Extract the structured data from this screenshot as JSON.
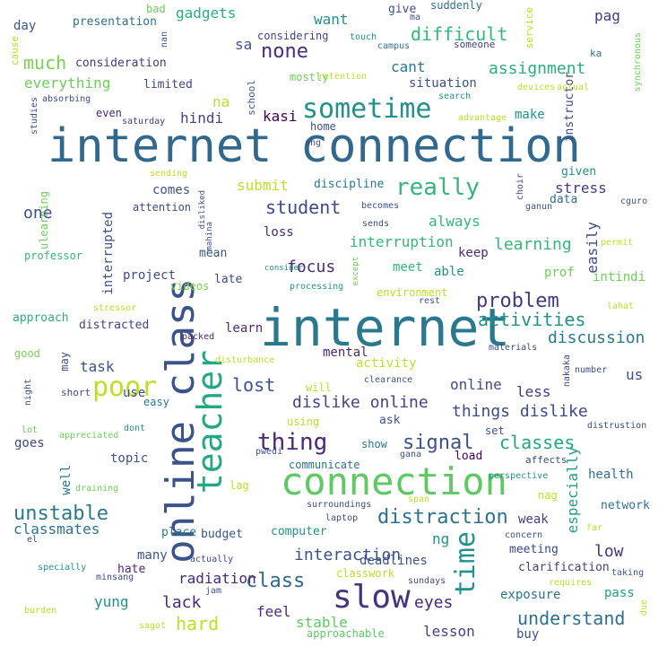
{
  "words": [
    {
      "text": "internet connection",
      "color": "#31688e"
    },
    {
      "text": "internet",
      "color": "#2a788e"
    },
    {
      "text": "connection",
      "color": "#5ec962"
    },
    {
      "text": "online class",
      "color": "#3b528b"
    },
    {
      "text": "teacher",
      "color": "#22a884"
    },
    {
      "text": "slow",
      "color": "#46327e"
    },
    {
      "text": "sometime",
      "color": "#21918c"
    },
    {
      "text": "poor",
      "color": "#bddf26"
    },
    {
      "text": "time",
      "color": "#21918c"
    },
    {
      "text": "really",
      "color": "#35b779"
    },
    {
      "text": "thing",
      "color": "#482878"
    },
    {
      "text": "problem",
      "color": "#443983"
    },
    {
      "text": "distraction",
      "color": "#2c728e"
    },
    {
      "text": "activities",
      "color": "#21918c"
    },
    {
      "text": "classes",
      "color": "#22a884"
    },
    {
      "text": "unstable",
      "color": "#2a788e"
    },
    {
      "text": "signal",
      "color": "#3b528b"
    },
    {
      "text": "none",
      "color": "#472d7b"
    },
    {
      "text": "student",
      "color": "#3e4a89"
    },
    {
      "text": "hard",
      "color": "#bddf26"
    },
    {
      "text": "lost",
      "color": "#3b528b"
    },
    {
      "text": "class",
      "color": "#31688e"
    },
    {
      "text": "understand",
      "color": "#2c728e"
    },
    {
      "text": "difficult",
      "color": "#35b779"
    },
    {
      "text": "much",
      "color": "#7ad151"
    },
    {
      "text": "assignment",
      "color": "#29af7f"
    },
    {
      "text": "dislike online",
      "color": "#414487"
    },
    {
      "text": "things dislike",
      "color": "#3e4a89"
    },
    {
      "text": "interaction",
      "color": "#3b528b"
    },
    {
      "text": "lack",
      "color": "#482878"
    },
    {
      "text": "eyes",
      "color": "#482878"
    },
    {
      "text": "focus",
      "color": "#472d7b"
    },
    {
      "text": "discussion",
      "color": "#2a788e"
    },
    {
      "text": "learning",
      "color": "#35b779"
    },
    {
      "text": "interruption",
      "color": "#35b779"
    },
    {
      "text": "submit",
      "color": "#bddf26"
    },
    {
      "text": "gadgets",
      "color": "#29af7f"
    },
    {
      "text": "everything",
      "color": "#6ece58"
    },
    {
      "text": "especially",
      "color": "#1f9e89"
    },
    {
      "text": "lesson",
      "color": "#414487"
    },
    {
      "text": "stable",
      "color": "#5ec962"
    },
    {
      "text": "interrupted",
      "color": "#3b528b"
    },
    {
      "text": "one",
      "color": "#3e4a89"
    },
    {
      "text": "online",
      "color": "#3e4a89"
    },
    {
      "text": "low",
      "color": "#46327e"
    },
    {
      "text": "always",
      "color": "#35b779"
    },
    {
      "text": "easily",
      "color": "#3e4a89"
    },
    {
      "text": "radiation",
      "color": "#482878"
    },
    {
      "text": "feel",
      "color": "#472d7b"
    },
    {
      "text": "yung",
      "color": "#21918c"
    },
    {
      "text": "stress",
      "color": "#443983"
    },
    {
      "text": "ng",
      "color": "#21918c"
    },
    {
      "text": "activity",
      "color": "#bddf26"
    },
    {
      "text": "pag",
      "color": "#443983"
    },
    {
      "text": "na",
      "color": "#bddf26"
    },
    {
      "text": "sa",
      "color": "#3b528b"
    },
    {
      "text": "hindi",
      "color": "#414487"
    },
    {
      "text": "kasi",
      "color": "#440154"
    },
    {
      "text": "cant",
      "color": "#2a788e"
    },
    {
      "text": "want",
      "color": "#21918c"
    },
    {
      "text": "classmates",
      "color": "#2c728e"
    },
    {
      "text": "less",
      "color": "#443983"
    },
    {
      "text": "make",
      "color": "#21918c"
    },
    {
      "text": "task",
      "color": "#3b528b"
    },
    {
      "text": "learn",
      "color": "#472d7b"
    },
    {
      "text": "exposure",
      "color": "#2c728e"
    },
    {
      "text": "deadlines",
      "color": "#3b528b"
    },
    {
      "text": "weak",
      "color": "#433e85"
    },
    {
      "text": "mental",
      "color": "#482878"
    },
    {
      "text": "project",
      "color": "#3e4a89"
    },
    {
      "text": "situation",
      "color": "#3b528b"
    },
    {
      "text": "meet",
      "color": "#35b779"
    },
    {
      "text": "able",
      "color": "#21918c"
    },
    {
      "text": "keep",
      "color": "#482878"
    },
    {
      "text": "comes",
      "color": "#3b528b"
    },
    {
      "text": "topic",
      "color": "#3b528b"
    },
    {
      "text": "goes",
      "color": "#414487"
    },
    {
      "text": "use",
      "color": "#3e4a89"
    },
    {
      "text": "many",
      "color": "#3b528b"
    },
    {
      "text": "pass",
      "color": "#1f9e89"
    },
    {
      "text": "buy",
      "color": "#3b528b"
    },
    {
      "text": "us",
      "color": "#3b528b"
    },
    {
      "text": "health",
      "color": "#2c728e"
    },
    {
      "text": "well",
      "color": "#2a788e"
    },
    {
      "text": "prof",
      "color": "#6ece58"
    },
    {
      "text": "intindi",
      "color": "#6ece58"
    },
    {
      "text": "loss",
      "color": "#482878"
    },
    {
      "text": "mean",
      "color": "#3b528b"
    },
    {
      "text": "late",
      "color": "#3e4a89"
    },
    {
      "text": "videos",
      "color": "#7ad151"
    },
    {
      "text": "approach",
      "color": "#29af7f"
    },
    {
      "text": "distracted",
      "color": "#414487"
    },
    {
      "text": "discipline",
      "color": "#2a788e"
    },
    {
      "text": "mostly",
      "color": "#6ece58"
    },
    {
      "text": "limited",
      "color": "#414487"
    },
    {
      "text": "even",
      "color": "#482878"
    },
    {
      "text": "hate",
      "color": "#482878"
    },
    {
      "text": "place",
      "color": "#2a788e"
    },
    {
      "text": "budget",
      "color": "#3b528b"
    },
    {
      "text": "computer",
      "color": "#21918c"
    },
    {
      "text": "communicate",
      "color": "#2c728e"
    },
    {
      "text": "clarification",
      "color": "#433e85"
    },
    {
      "text": "meeting",
      "color": "#3e4a89"
    },
    {
      "text": "network",
      "color": "#2c728e"
    },
    {
      "text": "given",
      "color": "#21918c"
    },
    {
      "text": "data",
      "color": "#2c728e"
    },
    {
      "text": "attention",
      "color": "#3e4a89"
    },
    {
      "text": "consideration",
      "color": "#443983"
    },
    {
      "text": "considering",
      "color": "#414487"
    },
    {
      "text": "presentation",
      "color": "#2c728e"
    },
    {
      "text": "day",
      "color": "#3b528b"
    },
    {
      "text": "bad",
      "color": "#6ece58"
    },
    {
      "text": "give",
      "color": "#3b528b"
    },
    {
      "text": "suddenly",
      "color": "#2c728e"
    },
    {
      "text": "instructor",
      "color": "#3e4a89"
    },
    {
      "text": "professor",
      "color": "#35b779"
    },
    {
      "text": "environment",
      "color": "#bddf26"
    },
    {
      "text": "processing",
      "color": "#1f9e89"
    },
    {
      "text": "good",
      "color": "#7ad151"
    },
    {
      "text": "packed",
      "color": "#482878"
    },
    {
      "text": "may",
      "color": "#3b528b"
    },
    {
      "text": "short",
      "color": "#3e4a89"
    },
    {
      "text": "easy",
      "color": "#2a788e"
    },
    {
      "text": "will",
      "color": "#bddf26"
    },
    {
      "text": "clearance",
      "color": "#3b528b"
    },
    {
      "text": "ask",
      "color": "#3b528b"
    },
    {
      "text": "using",
      "color": "#bddf26"
    },
    {
      "text": "set",
      "color": "#3b528b"
    },
    {
      "text": "show",
      "color": "#2a788e"
    },
    {
      "text": "load",
      "color": "#440154"
    },
    {
      "text": "affects",
      "color": "#3e4a89"
    },
    {
      "text": "nag",
      "color": "#bddf26"
    },
    {
      "text": "lag",
      "color": "#bddf26"
    },
    {
      "text": "home",
      "color": "#3e4a89"
    },
    {
      "text": "school",
      "color": "#3b528b"
    },
    {
      "text": "search",
      "color": "#21918c"
    },
    {
      "text": "actual",
      "color": "#bddf26"
    },
    {
      "text": "devices",
      "color": "#bddf26"
    },
    {
      "text": "advantage",
      "color": "#bddf26"
    },
    {
      "text": "saturday",
      "color": "#443983"
    },
    {
      "text": "absorbing",
      "color": "#3e4a89"
    },
    {
      "text": "studies",
      "color": "#3e4a89"
    },
    {
      "text": "retention",
      "color": "#bddf26"
    },
    {
      "text": "touch",
      "color": "#21918c"
    },
    {
      "text": "campus",
      "color": "#2c728e"
    },
    {
      "text": "someone",
      "color": "#433e85"
    },
    {
      "text": "service",
      "color": "#bddf26"
    },
    {
      "text": "synchronous",
      "color": "#6ece58"
    },
    {
      "text": "ka",
      "color": "#2c728e"
    },
    {
      "text": "cause",
      "color": "#bddf26"
    },
    {
      "text": "ang",
      "color": "#3e4a89"
    },
    {
      "text": "sending",
      "color": "#bddf26"
    },
    {
      "text": "disliked",
      "color": "#3b528b"
    },
    {
      "text": "choir",
      "color": "#3e4a89"
    },
    {
      "text": "ganun",
      "color": "#3b528b"
    },
    {
      "text": "cguro",
      "color": "#3b528b"
    },
    {
      "text": "becomes",
      "color": "#3b528b"
    },
    {
      "text": "sends",
      "color": "#3e4a89"
    },
    {
      "text": "ulearning",
      "color": "#6ece58"
    },
    {
      "text": "mahina",
      "color": "#3b528b"
    },
    {
      "text": "permit",
      "color": "#bddf26"
    },
    {
      "text": "consider",
      "color": "#21918c"
    },
    {
      "text": "except",
      "color": "#6ece58"
    },
    {
      "text": "rest",
      "color": "#3b528b"
    },
    {
      "text": "lahat",
      "color": "#bddf26"
    },
    {
      "text": "stressor",
      "color": "#bddf26"
    },
    {
      "text": "materials",
      "color": "#3e4a89"
    },
    {
      "text": "disturbance",
      "color": "#bddf26"
    },
    {
      "text": "night",
      "color": "#3e4a89"
    },
    {
      "text": "nakaka",
      "color": "#3e4a89"
    },
    {
      "text": "number",
      "color": "#3e4a89"
    },
    {
      "text": "lot",
      "color": "#6ece58"
    },
    {
      "text": "dont",
      "color": "#21918c"
    },
    {
      "text": "appreciated",
      "color": "#6ece58"
    },
    {
      "text": "distrustion",
      "color": "#3e4a89"
    },
    {
      "text": "pwedi",
      "color": "#3b528b"
    },
    {
      "text": "gana",
      "color": "#3b528b"
    },
    {
      "text": "perspective",
      "color": "#21918c"
    },
    {
      "text": "draining",
      "color": "#6ece58"
    },
    {
      "text": "surroundings",
      "color": "#3e4a89"
    },
    {
      "text": "span",
      "color": "#bddf26"
    },
    {
      "text": "el",
      "color": "#3e4a89"
    },
    {
      "text": "laptop",
      "color": "#3e4a89"
    },
    {
      "text": "concern",
      "color": "#3b528b"
    },
    {
      "text": "far",
      "color": "#bddf26"
    },
    {
      "text": "specially",
      "color": "#21918c"
    },
    {
      "text": "actually",
      "color": "#3e4a89"
    },
    {
      "text": "taking",
      "color": "#3b528b"
    },
    {
      "text": "minsang",
      "color": "#3e4a89"
    },
    {
      "text": "jam",
      "color": "#3b528b"
    },
    {
      "text": "requires",
      "color": "#bddf26"
    },
    {
      "text": "sundays",
      "color": "#3e4a89"
    },
    {
      "text": "due",
      "color": "#bddf26"
    },
    {
      "text": "burden",
      "color": "#bddf26"
    },
    {
      "text": "sagot",
      "color": "#bddf26"
    },
    {
      "text": "approachable",
      "color": "#5ec962"
    },
    {
      "text": "classwork",
      "color": "#bddf26"
    },
    {
      "text": "nan",
      "color": "#3b528b"
    },
    {
      "text": "ma",
      "color": "#3b528b"
    }
  ]
}
